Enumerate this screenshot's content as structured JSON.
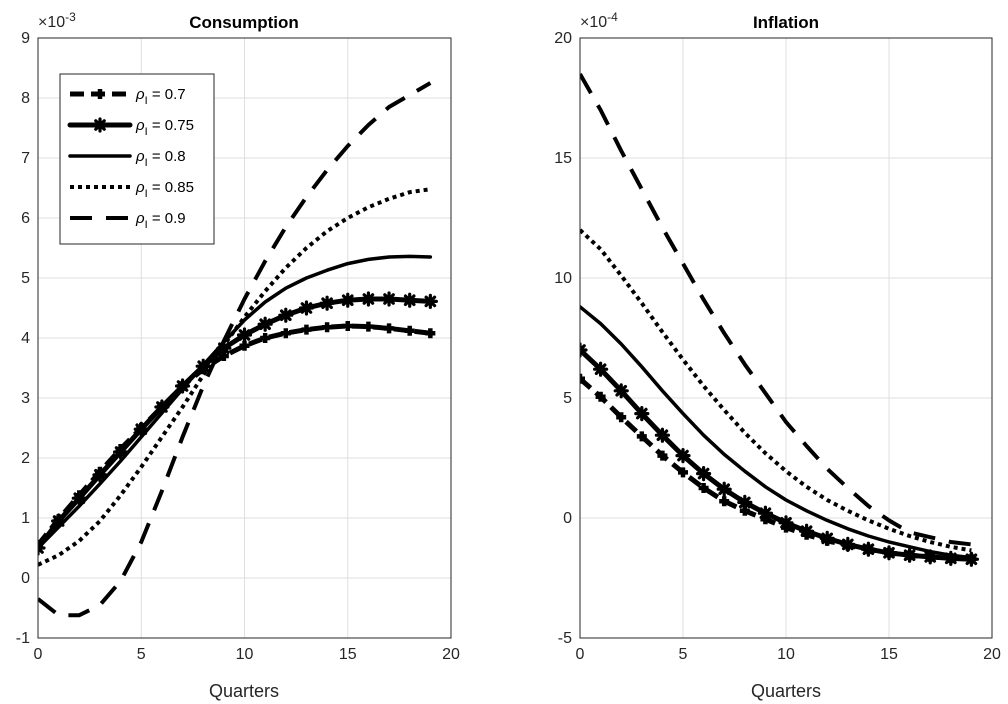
{
  "chart_data": [
    {
      "type": "line",
      "title": "Consumption",
      "xlabel": "Quarters",
      "ylabel": "",
      "exponent_label": "×10",
      "exponent_power": "-3",
      "xlim": [
        0,
        20
      ],
      "ylim": [
        -1,
        9
      ],
      "xticks": [
        "0",
        "5",
        "10",
        "15",
        "20"
      ],
      "yticks": [
        "-1",
        "0",
        "1",
        "2",
        "3",
        "4",
        "5",
        "6",
        "7",
        "8",
        "9"
      ],
      "grid": true,
      "legend_position": "top-left",
      "x": [
        0,
        1,
        2,
        3,
        4,
        5,
        6,
        7,
        8,
        9,
        10,
        11,
        12,
        13,
        14,
        15,
        16,
        17,
        18,
        19
      ],
      "series": [
        {
          "name": "ρ",
          "subscript": "I",
          "value_text": " = 0.7",
          "style": "dashed",
          "marker": "plus",
          "values": [
            0.55,
            0.98,
            1.38,
            1.77,
            2.15,
            2.5,
            2.85,
            3.2,
            3.48,
            3.7,
            3.87,
            4.0,
            4.08,
            4.14,
            4.18,
            4.2,
            4.19,
            4.16,
            4.12,
            4.08
          ]
        },
        {
          "name": "ρ",
          "subscript": "I",
          "value_text": " = 0.75",
          "style": "solid-thick",
          "marker": "asterisk",
          "values": [
            0.5,
            0.95,
            1.33,
            1.72,
            2.1,
            2.48,
            2.85,
            3.2,
            3.53,
            3.83,
            4.05,
            4.23,
            4.38,
            4.5,
            4.58,
            4.63,
            4.65,
            4.65,
            4.63,
            4.61
          ]
        },
        {
          "name": "ρ",
          "subscript": "I",
          "value_text": " = 0.8",
          "style": "solid",
          "marker": "none",
          "values": [
            0.5,
            0.85,
            1.2,
            1.57,
            1.95,
            2.35,
            2.75,
            3.15,
            3.55,
            3.93,
            4.3,
            4.6,
            4.83,
            5.0,
            5.13,
            5.24,
            5.31,
            5.35,
            5.36,
            5.35
          ]
        },
        {
          "name": "ρ",
          "subscript": "I",
          "value_text": " = 0.85",
          "style": "dotted",
          "marker": "none",
          "values": [
            0.22,
            0.38,
            0.62,
            0.95,
            1.38,
            1.85,
            2.35,
            2.85,
            3.38,
            3.88,
            4.35,
            4.78,
            5.17,
            5.5,
            5.78,
            6.0,
            6.18,
            6.32,
            6.43,
            6.48
          ]
        },
        {
          "name": "ρ",
          "subscript": "I",
          "value_text": " = 0.9",
          "style": "dashed-long",
          "marker": "none",
          "values": [
            -0.35,
            -0.62,
            -0.62,
            -0.45,
            -0.05,
            0.6,
            1.45,
            2.35,
            3.2,
            3.95,
            4.65,
            5.28,
            5.85,
            6.35,
            6.8,
            7.2,
            7.55,
            7.85,
            8.05,
            8.25
          ]
        }
      ]
    },
    {
      "type": "line",
      "title": "Inflation",
      "xlabel": "Quarters",
      "ylabel": "",
      "exponent_label": "×10",
      "exponent_power": "-4",
      "xlim": [
        0,
        20
      ],
      "ylim": [
        -5,
        20
      ],
      "xticks": [
        "0",
        "5",
        "10",
        "15",
        "20"
      ],
      "yticks": [
        "-5",
        "0",
        "5",
        "10",
        "15",
        "20"
      ],
      "grid": true,
      "x": [
        0,
        1,
        2,
        3,
        4,
        5,
        6,
        7,
        8,
        9,
        10,
        11,
        12,
        13,
        14,
        15,
        16,
        17,
        18,
        19
      ],
      "series": [
        {
          "name": "ρ_I = 0.7",
          "style": "dashed",
          "marker": "plus",
          "values": [
            5.8,
            5.05,
            4.2,
            3.4,
            2.6,
            1.9,
            1.25,
            0.7,
            0.3,
            -0.05,
            -0.4,
            -0.7,
            -0.95,
            -1.15,
            -1.3,
            -1.45,
            -1.55,
            -1.62,
            -1.67,
            -1.7
          ]
        },
        {
          "name": "ρ_I = 0.75",
          "style": "solid-thick",
          "marker": "asterisk",
          "values": [
            7.0,
            6.2,
            5.3,
            4.35,
            3.45,
            2.6,
            1.85,
            1.2,
            0.65,
            0.2,
            -0.2,
            -0.55,
            -0.85,
            -1.1,
            -1.3,
            -1.45,
            -1.55,
            -1.62,
            -1.68,
            -1.72
          ]
        },
        {
          "name": "ρ_I = 0.8",
          "style": "solid",
          "marker": "none",
          "values": [
            8.8,
            8.1,
            7.25,
            6.3,
            5.3,
            4.35,
            3.45,
            2.65,
            1.95,
            1.3,
            0.75,
            0.3,
            -0.1,
            -0.45,
            -0.75,
            -1.0,
            -1.2,
            -1.4,
            -1.55,
            -1.65
          ]
        },
        {
          "name": "ρ_I = 0.85",
          "style": "dotted",
          "marker": "none",
          "values": [
            12.0,
            11.2,
            10.1,
            8.95,
            7.75,
            6.6,
            5.5,
            4.5,
            3.55,
            2.7,
            1.95,
            1.3,
            0.75,
            0.3,
            -0.1,
            -0.45,
            -0.75,
            -1.0,
            -1.2,
            -1.35
          ]
        },
        {
          "name": "ρ_I = 0.9",
          "style": "dashed-long",
          "marker": "none",
          "values": [
            18.5,
            17.0,
            15.3,
            13.7,
            12.1,
            10.6,
            9.1,
            7.7,
            6.4,
            5.2,
            4.0,
            3.0,
            2.05,
            1.25,
            0.5,
            -0.1,
            -0.6,
            -0.8,
            -1.0,
            -1.1
          ]
        }
      ]
    }
  ]
}
